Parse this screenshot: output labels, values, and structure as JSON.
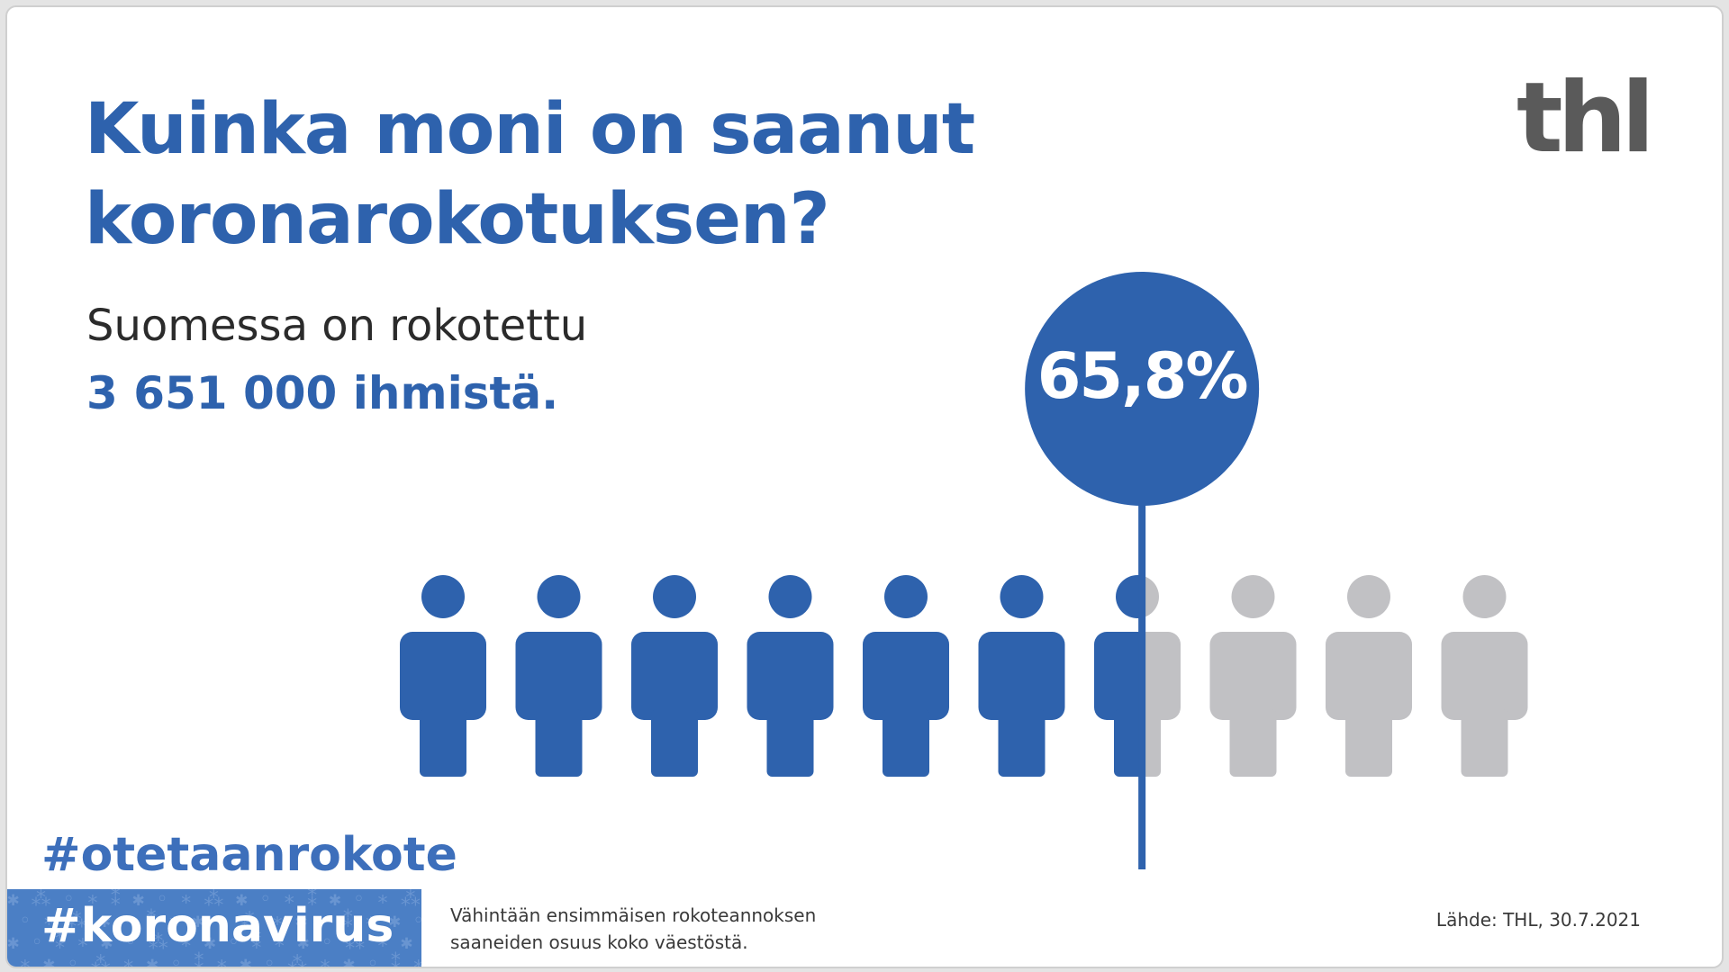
{
  "title": {
    "line1": "Kuinka moni on saanut",
    "line2": "koronarokotuksen?"
  },
  "logo": "thl",
  "lead": "Suomessa on rokotettu",
  "count": "3 651 000 ihmistä.",
  "percent_label": "65,8%",
  "vaccinated_fraction": 0.658,
  "people_total": 10,
  "colors": {
    "vaccinated": "#2e62ad",
    "unvaccinated": "#c1c1c4",
    "accent": "#2e62ad"
  },
  "hashtags": [
    "#otetaanrokote",
    "#koronavirus"
  ],
  "note": {
    "line1": "Vähintään ensimmäisen rokoteannoksen",
    "line2": "saaneiden osuus koko väestöstä."
  },
  "source": "Lähde: THL, 30.7.2021"
}
